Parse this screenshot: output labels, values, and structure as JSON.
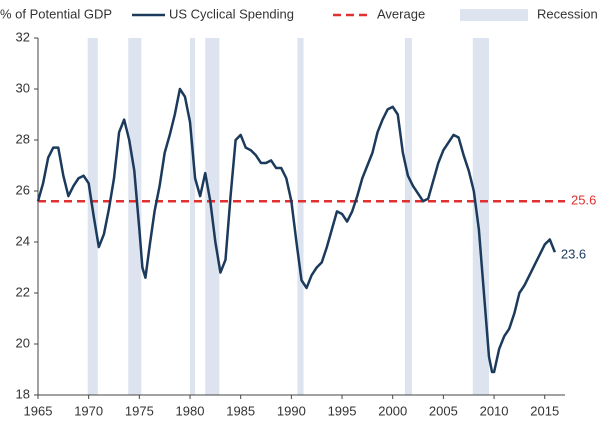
{
  "chart_data": {
    "type": "line",
    "y_axis_label": "% of Potential GDP",
    "x": [
      1965,
      1965.5,
      1966,
      1966.5,
      1967,
      1967.5,
      1968,
      1968.5,
      1969,
      1969.5,
      1970,
      1970.5,
      1971,
      1971.5,
      1972,
      1972.5,
      1973,
      1973.5,
      1974,
      1974.5,
      1975,
      1975.3,
      1975.6,
      1976,
      1976.5,
      1977,
      1977.5,
      1978,
      1978.5,
      1979,
      1979.5,
      1980,
      1980.5,
      1981,
      1981.5,
      1982,
      1982.5,
      1983,
      1983.5,
      1984,
      1984.5,
      1985,
      1985.5,
      1986,
      1986.5,
      1987,
      1987.5,
      1988,
      1988.5,
      1989,
      1989.5,
      1990,
      1990.5,
      1991,
      1991.5,
      1992,
      1992.5,
      1993,
      1993.5,
      1994,
      1994.5,
      1995,
      1995.5,
      1996,
      1996.5,
      1997,
      1997.5,
      1998,
      1998.5,
      1999,
      1999.5,
      2000,
      2000.5,
      2001,
      2001.5,
      2002,
      2002.5,
      2003,
      2003.5,
      2004,
      2004.5,
      2005,
      2005.5,
      2006,
      2006.5,
      2007,
      2007.5,
      2008,
      2008.5,
      2009,
      2009.5,
      2009.8,
      2010,
      2010.5,
      2011,
      2011.5,
      2012,
      2012.5,
      2013,
      2013.5,
      2014,
      2014.5,
      2015,
      2015.5,
      2016
    ],
    "series": [
      {
        "name": "US Cyclical Spending",
        "color": "#1b3a5c",
        "values": [
          25.6,
          26.3,
          27.3,
          27.7,
          27.7,
          26.6,
          25.8,
          26.2,
          26.5,
          26.6,
          26.3,
          25.0,
          23.8,
          24.3,
          25.3,
          26.5,
          28.3,
          28.8,
          28.0,
          26.8,
          24.5,
          23.0,
          22.6,
          23.8,
          25.2,
          26.2,
          27.5,
          28.2,
          29.0,
          30.0,
          29.7,
          28.7,
          26.5,
          25.8,
          26.7,
          25.6,
          24.0,
          22.8,
          23.3,
          25.8,
          28.0,
          28.2,
          27.7,
          27.6,
          27.4,
          27.1,
          27.1,
          27.2,
          26.9,
          26.9,
          26.5,
          25.6,
          24.0,
          22.5,
          22.2,
          22.7,
          23.0,
          23.2,
          23.8,
          24.5,
          25.2,
          25.1,
          24.8,
          25.2,
          25.8,
          26.5,
          27.0,
          27.5,
          28.3,
          28.8,
          29.2,
          29.3,
          29.0,
          27.5,
          26.6,
          26.2,
          25.9,
          25.6,
          25.7,
          26.4,
          27.1,
          27.6,
          27.9,
          28.2,
          28.1,
          27.4,
          26.8,
          26.0,
          24.5,
          22.0,
          19.5,
          18.9,
          18.9,
          19.8,
          20.3,
          20.6,
          21.2,
          22.0,
          22.3,
          22.7,
          23.1,
          23.5,
          23.9,
          24.1,
          23.6
        ]
      }
    ],
    "average": {
      "name": "Average",
      "value": 25.6,
      "color": "#e03030"
    },
    "recession": {
      "name": "Recession",
      "color": "#dde4ef",
      "periods": [
        [
          1969.9,
          1970.9
        ],
        [
          1973.9,
          1975.2
        ],
        [
          1980.0,
          1980.5
        ],
        [
          1981.5,
          1982.9
        ],
        [
          1990.6,
          1991.2
        ],
        [
          2001.2,
          2001.9
        ],
        [
          2007.9,
          2009.5
        ]
      ]
    },
    "xlim": [
      1965,
      2017
    ],
    "xticks": [
      1965,
      1970,
      1975,
      1980,
      1985,
      1990,
      1995,
      2000,
      2005,
      2010,
      2015
    ],
    "ylim": [
      18,
      32
    ],
    "yticks": [
      18,
      20,
      22,
      24,
      26,
      28,
      30,
      32
    ]
  }
}
